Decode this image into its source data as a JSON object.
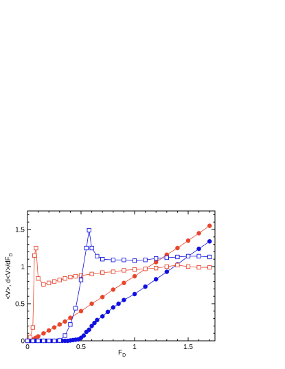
{
  "chart_data": {
    "type": "line",
    "xlabel": {
      "main": "F",
      "sub": "D"
    },
    "ylabel": {
      "main": "<V>, d<V>/dF",
      "sub": "D"
    },
    "xlim": [
      0,
      1.75
    ],
    "ylim": [
      0,
      1.75
    ],
    "xticks": [
      {
        "value": 0,
        "label": "0"
      },
      {
        "value": 0.5,
        "label": "0.5"
      },
      {
        "value": 1,
        "label": "1"
      },
      {
        "value": 1.5,
        "label": "1.5"
      }
    ],
    "yticks": [
      {
        "value": 0,
        "label": "0"
      },
      {
        "value": 0.5,
        "label": "0.5"
      },
      {
        "value": 1,
        "label": "1"
      },
      {
        "value": 1.5,
        "label": "1.5"
      }
    ],
    "grid": false,
    "series": [
      {
        "color": "#e8452c",
        "marker": "filled-circle",
        "x": [
          0,
          0.025,
          0.05,
          0.075,
          0.1,
          0.15,
          0.2,
          0.25,
          0.3,
          0.35,
          0.4,
          0.5,
          0.6,
          0.7,
          0.8,
          0.9,
          1.0,
          1.1,
          1.2,
          1.3,
          1.4,
          1.5,
          1.6,
          1.7
        ],
        "y": [
          0,
          0.005,
          0.02,
          0.04,
          0.06,
          0.1,
          0.14,
          0.18,
          0.22,
          0.26,
          0.31,
          0.4,
          0.5,
          0.59,
          0.69,
          0.78,
          0.87,
          0.97,
          1.06,
          1.16,
          1.25,
          1.35,
          1.45,
          1.55
        ]
      },
      {
        "color": "#1010e0",
        "marker": "filled-circle",
        "x": [
          0,
          0.025,
          0.05,
          0.075,
          0.1,
          0.125,
          0.15,
          0.175,
          0.2,
          0.225,
          0.25,
          0.275,
          0.3,
          0.325,
          0.35,
          0.375,
          0.4,
          0.425,
          0.45,
          0.475,
          0.5,
          0.525,
          0.55,
          0.575,
          0.6,
          0.625,
          0.65,
          0.7,
          0.75,
          0.8,
          0.85,
          0.9,
          1.0,
          1.1,
          1.2,
          1.3,
          1.4,
          1.5,
          1.6,
          1.7
        ],
        "y": [
          0,
          0,
          0,
          0,
          0,
          0,
          0,
          0,
          0,
          0,
          0,
          0,
          0,
          0,
          0,
          0,
          0.005,
          0.01,
          0.015,
          0.02,
          0.04,
          0.07,
          0.12,
          0.15,
          0.2,
          0.24,
          0.28,
          0.33,
          0.39,
          0.45,
          0.5,
          0.55,
          0.63,
          0.73,
          0.83,
          0.93,
          1.03,
          1.14,
          1.24,
          1.34
        ]
      },
      {
        "color": "#e8452c",
        "marker": "open-square",
        "x": [
          0,
          0.025,
          0.05,
          0.065,
          0.08,
          0.1,
          0.15,
          0.2,
          0.25,
          0.3,
          0.35,
          0.4,
          0.45,
          0.5,
          0.6,
          0.7,
          0.8,
          0.9,
          1.0,
          1.1,
          1.2,
          1.3,
          1.4,
          1.5,
          1.6,
          1.7
        ],
        "y": [
          0,
          0.05,
          0.18,
          1.15,
          1.25,
          0.84,
          0.76,
          0.78,
          0.8,
          0.82,
          0.84,
          0.86,
          0.87,
          0.88,
          0.9,
          0.92,
          0.93,
          0.95,
          0.96,
          0.97,
          0.98,
          1.0,
          1.02,
          1.0,
          0.99,
          0.99
        ]
      },
      {
        "color": "#1010e0",
        "marker": "open-square",
        "x": [
          0,
          0.05,
          0.1,
          0.15,
          0.2,
          0.25,
          0.3,
          0.35,
          0.4,
          0.45,
          0.5,
          0.55,
          0.575,
          0.6,
          0.65,
          0.7,
          0.8,
          0.9,
          1.0,
          1.1,
          1.2,
          1.3,
          1.4,
          1.5,
          1.6,
          1.7
        ],
        "y": [
          0,
          0,
          0,
          0,
          0,
          0,
          0.005,
          0.07,
          0.22,
          0.44,
          0.82,
          1.25,
          1.49,
          1.25,
          1.14,
          1.1,
          1.09,
          1.09,
          1.08,
          1.09,
          1.11,
          1.12,
          1.13,
          1.14,
          1.14,
          1.13
        ]
      }
    ]
  }
}
